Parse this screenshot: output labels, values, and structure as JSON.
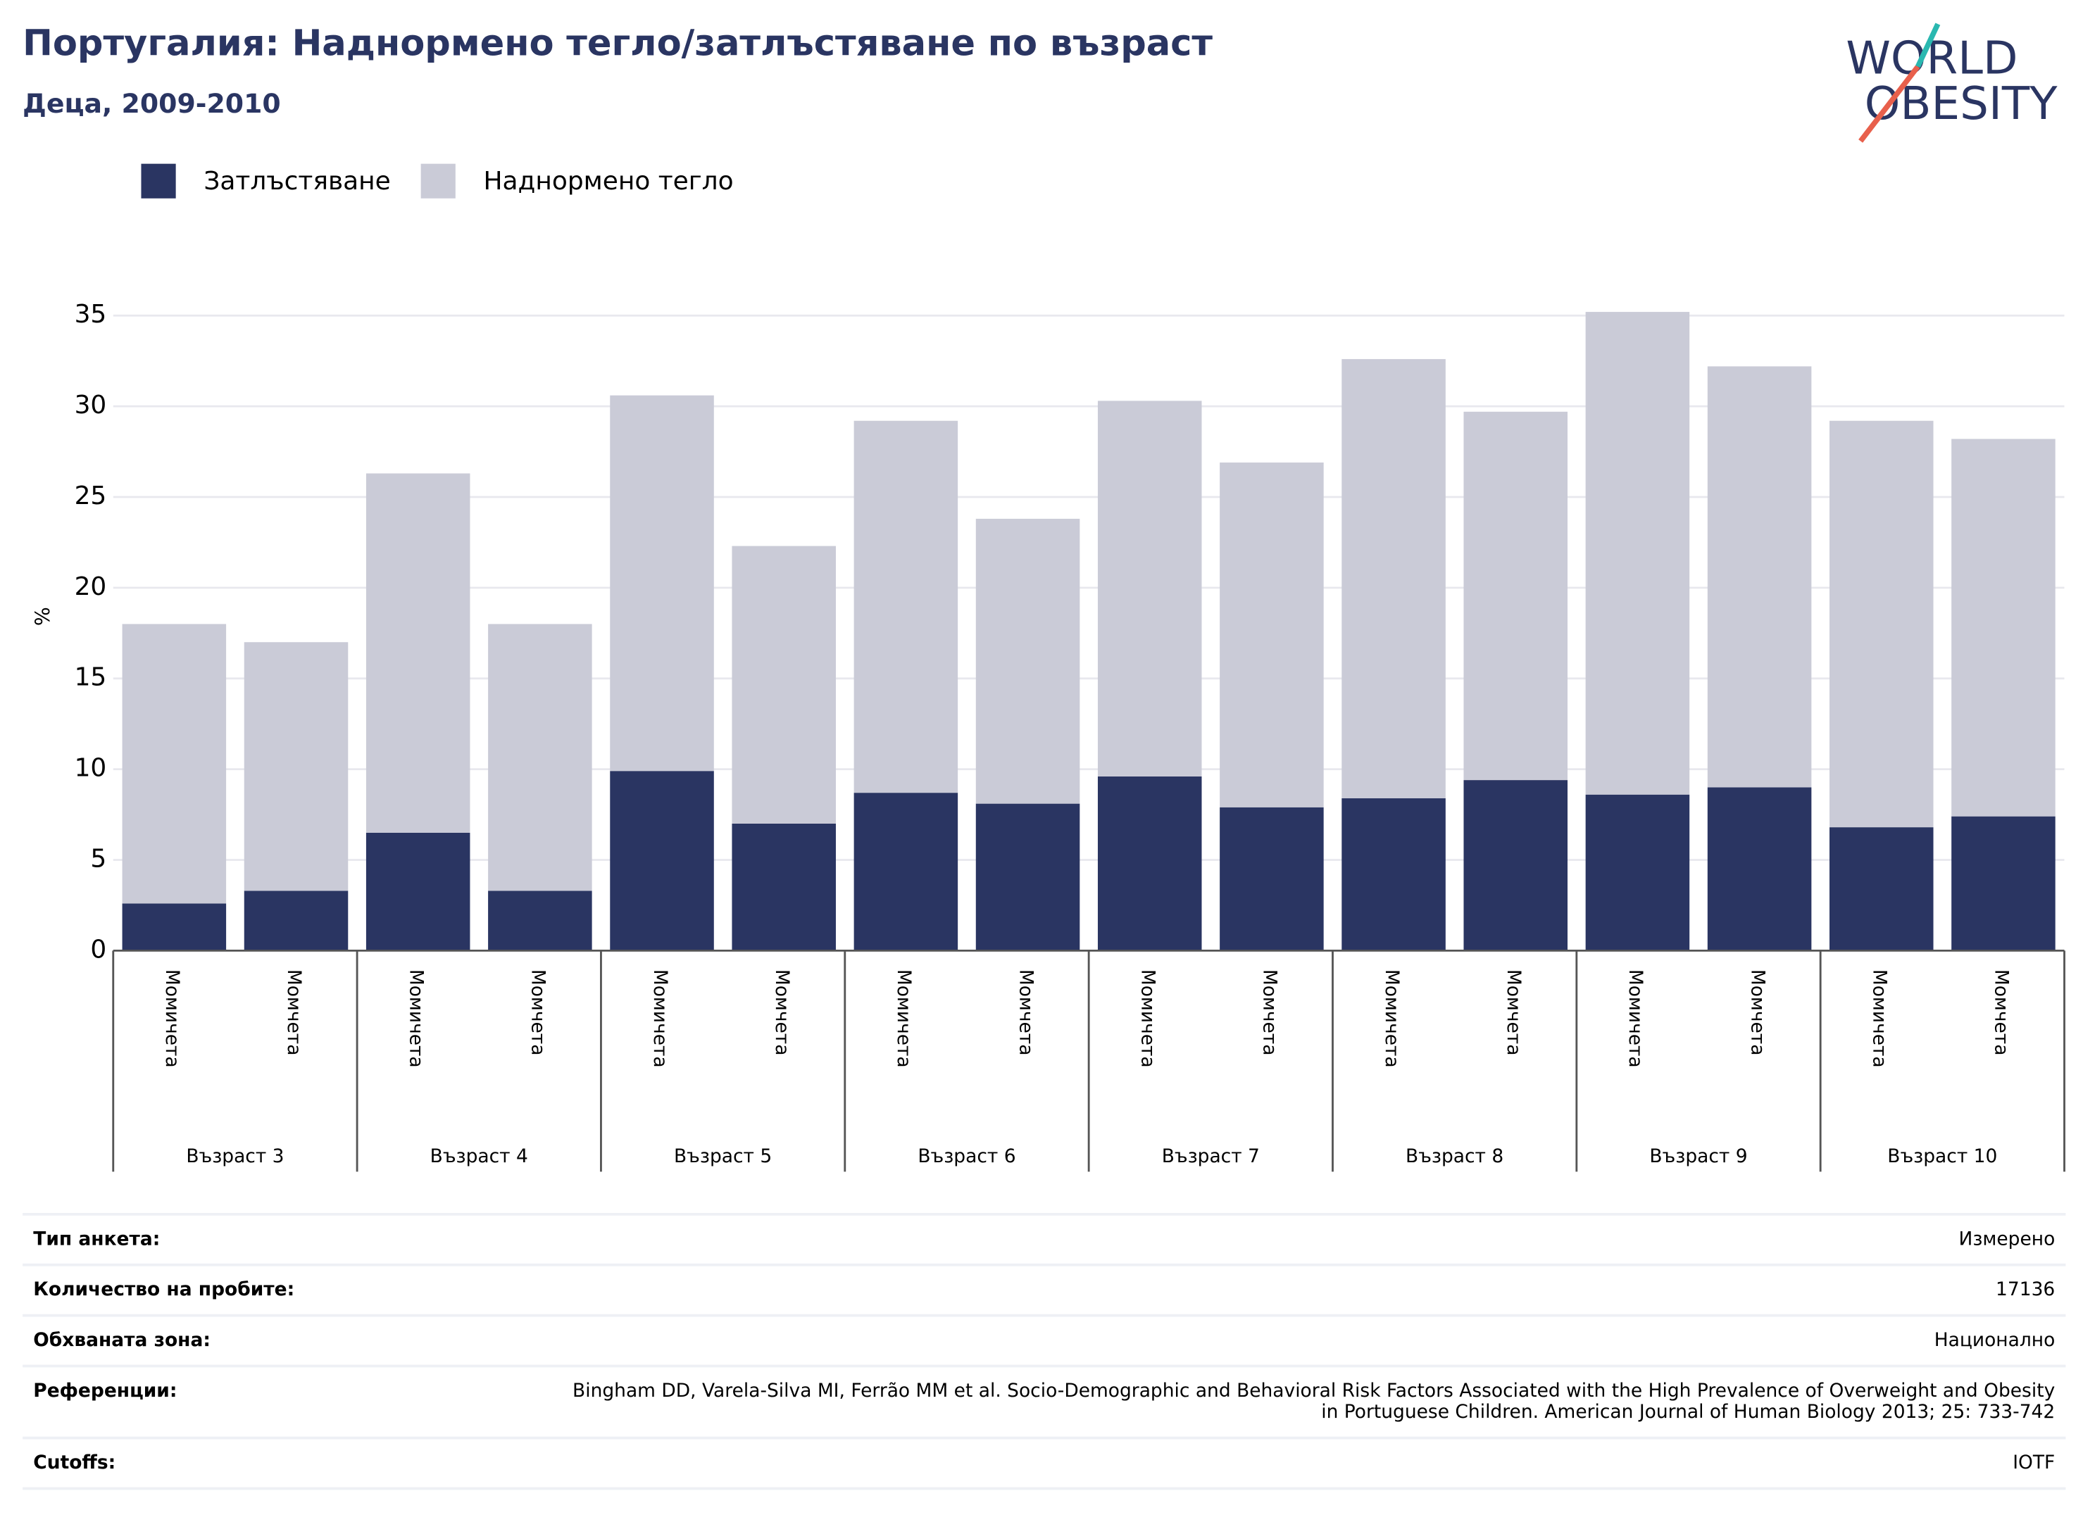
{
  "chart_data": {
    "type": "stacked_bar",
    "title": "Португалия: Наднормено тегло/затлъстяване по възраст",
    "subtitle": "Деца, 2009-2010",
    "logo": [
      "WORLD",
      "OBESITY"
    ],
    "y_label": "%",
    "categories": [
      "Момичета",
      "Момчета",
      "Момичета",
      "Момчета",
      "Момичета",
      "Момчета",
      "Момичета",
      "Момчета",
      "Момичета",
      "Момчета",
      "Момичета",
      "Момчета",
      "Момичета",
      "Момчета",
      "Момичета",
      "Момчета"
    ],
    "groups": [
      "Възраст 3",
      "Възраст 4",
      "Възраст 5",
      "Възраст 6",
      "Възраст 7",
      "Възраст 8",
      "Възраст 9",
      "Възраст 10"
    ],
    "series": [
      {
        "name": "Затлъстяване",
        "color": "#2a3562",
        "values": [
          2.6,
          3.3,
          6.5,
          3.3,
          9.9,
          7.0,
          8.7,
          8.1,
          9.6,
          7.9,
          8.4,
          9.4,
          8.6,
          9.0,
          6.8,
          7.4
        ]
      },
      {
        "name": "Наднормено тегло",
        "color": "#cacbd7",
        "values": [
          15.4,
          13.7,
          19.8,
          14.7,
          20.7,
          15.3,
          20.5,
          15.7,
          20.7,
          19.0,
          24.2,
          20.3,
          26.6,
          23.2,
          22.4,
          20.8
        ]
      }
    ],
    "ylim": [
      0,
      35
    ],
    "yticks": [
      0,
      5,
      10,
      15,
      20,
      25,
      30,
      35
    ],
    "grid": true,
    "legend": "top-left"
  },
  "info_table": [
    {
      "label": "Тип анкета:",
      "value": "Измерено"
    },
    {
      "label": "Количество на пробите:",
      "value": "17136"
    },
    {
      "label": "Обхваната зона:",
      "value": "Национално"
    },
    {
      "label": "Референции:",
      "value": "Bingham DD, Varela-Silva MI, Ferrão MM et al. Socio-Demographic and Behavioral Risk Factors Associated with the High Prevalence of Overweight and Obesity in Portuguese Children. American Journal of Human Biology 2013; 25: 733-742"
    },
    {
      "label": "Cutoffs:",
      "value": "IOTF"
    }
  ]
}
